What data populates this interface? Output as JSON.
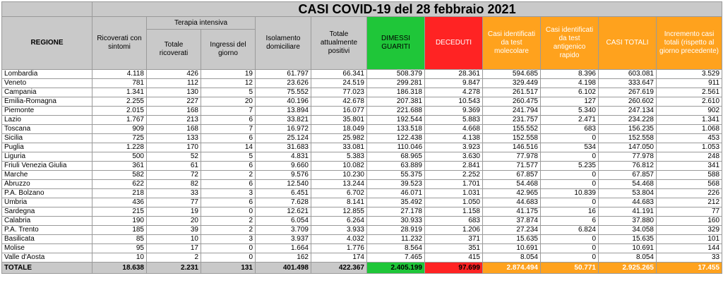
{
  "title": "CASI COVID-19 del 28 febbraio 2021",
  "headers": {
    "region": "REGIONE",
    "ricoverati": "Ricoverati con sintomi",
    "terapia_group": "Terapia intensiva",
    "totale_ricoverati": "Totale ricoverati",
    "ingressi": "Ingressi del giorno",
    "isolamento": "Isolamento domiciliare",
    "positivi": "Totale attualmente positivi",
    "dimessi": "DIMESSI GUARITI",
    "deceduti": "DECEDUTI",
    "molecolare": "Casi identificati da test molecolare",
    "antigenico": "Casi identificati da test antigenico rapido",
    "casi_totali": "CASI TOTALI",
    "incremento": "Incremento casi totali (rispetto al giorno precedente)"
  },
  "rows": [
    [
      "Lombardia",
      "4.118",
      "426",
      "19",
      "61.797",
      "66.341",
      "508.379",
      "28.361",
      "594.685",
      "8.396",
      "603.081",
      "3.529"
    ],
    [
      "Veneto",
      "781",
      "112",
      "12",
      "23.626",
      "24.519",
      "299.281",
      "9.847",
      "329.449",
      "4.198",
      "333.647",
      "911"
    ],
    [
      "Campania",
      "1.341",
      "130",
      "5",
      "75.552",
      "77.023",
      "186.318",
      "4.278",
      "261.517",
      "6.102",
      "267.619",
      "2.561"
    ],
    [
      "Emilia-Romagna",
      "2.255",
      "227",
      "20",
      "40.196",
      "42.678",
      "207.381",
      "10.543",
      "260.475",
      "127",
      "260.602",
      "2.610"
    ],
    [
      "Piemonte",
      "2.015",
      "168",
      "7",
      "13.894",
      "16.077",
      "221.688",
      "9.369",
      "241.794",
      "5.340",
      "247.134",
      "902"
    ],
    [
      "Lazio",
      "1.767",
      "213",
      "6",
      "33.821",
      "35.801",
      "192.544",
      "5.883",
      "231.757",
      "2.471",
      "234.228",
      "1.341"
    ],
    [
      "Toscana",
      "909",
      "168",
      "7",
      "16.972",
      "18.049",
      "133.518",
      "4.668",
      "155.552",
      "683",
      "156.235",
      "1.068"
    ],
    [
      "Sicilia",
      "725",
      "133",
      "6",
      "25.124",
      "25.982",
      "122.438",
      "4.138",
      "152.558",
      "0",
      "152.558",
      "453"
    ],
    [
      "Puglia",
      "1.228",
      "170",
      "14",
      "31.683",
      "33.081",
      "110.046",
      "3.923",
      "146.516",
      "534",
      "147.050",
      "1.053"
    ],
    [
      "Liguria",
      "500",
      "52",
      "5",
      "4.831",
      "5.383",
      "68.965",
      "3.630",
      "77.978",
      "0",
      "77.978",
      "248"
    ],
    [
      "Friuli Venezia Giulia",
      "361",
      "61",
      "6",
      "9.660",
      "10.082",
      "63.889",
      "2.841",
      "71.577",
      "5.235",
      "76.812",
      "341"
    ],
    [
      "Marche",
      "582",
      "72",
      "2",
      "9.576",
      "10.230",
      "55.375",
      "2.252",
      "67.857",
      "0",
      "67.857",
      "588"
    ],
    [
      "Abruzzo",
      "622",
      "82",
      "6",
      "12.540",
      "13.244",
      "39.523",
      "1.701",
      "54.468",
      "0",
      "54.468",
      "568"
    ],
    [
      "P.A. Bolzano",
      "218",
      "33",
      "3",
      "6.451",
      "6.702",
      "46.071",
      "1.031",
      "42.965",
      "10.839",
      "53.804",
      "226"
    ],
    [
      "Umbria",
      "436",
      "77",
      "6",
      "7.628",
      "8.141",
      "35.492",
      "1.050",
      "44.683",
      "0",
      "44.683",
      "212"
    ],
    [
      "Sardegna",
      "215",
      "19",
      "0",
      "12.621",
      "12.855",
      "27.178",
      "1.158",
      "41.175",
      "16",
      "41.191",
      "77"
    ],
    [
      "Calabria",
      "190",
      "20",
      "2",
      "6.054",
      "6.264",
      "30.933",
      "683",
      "37.874",
      "6",
      "37.880",
      "160"
    ],
    [
      "P.A. Trento",
      "185",
      "39",
      "2",
      "3.709",
      "3.933",
      "28.919",
      "1.206",
      "27.234",
      "6.824",
      "34.058",
      "329"
    ],
    [
      "Basilicata",
      "85",
      "10",
      "3",
      "3.937",
      "4.032",
      "11.232",
      "371",
      "15.635",
      "0",
      "15.635",
      "101"
    ],
    [
      "Molise",
      "95",
      "17",
      "0",
      "1.664",
      "1.776",
      "8.564",
      "351",
      "10.691",
      "0",
      "10.691",
      "144"
    ],
    [
      "Valle d'Aosta",
      "10",
      "2",
      "0",
      "162",
      "174",
      "7.465",
      "415",
      "8.054",
      "0",
      "8.054",
      "33"
    ]
  ],
  "total": [
    "TOTALE",
    "18.638",
    "2.231",
    "131",
    "401.498",
    "422.367",
    "2.405.199",
    "97.699",
    "2.874.494",
    "50.771",
    "2.925.265",
    "17.455"
  ],
  "colors": {
    "header_gray": "#c9c9c9",
    "dimessi_green": "#1fc639",
    "deceduti_red": "#ff2323",
    "casi_orange": "#ffa21d"
  }
}
